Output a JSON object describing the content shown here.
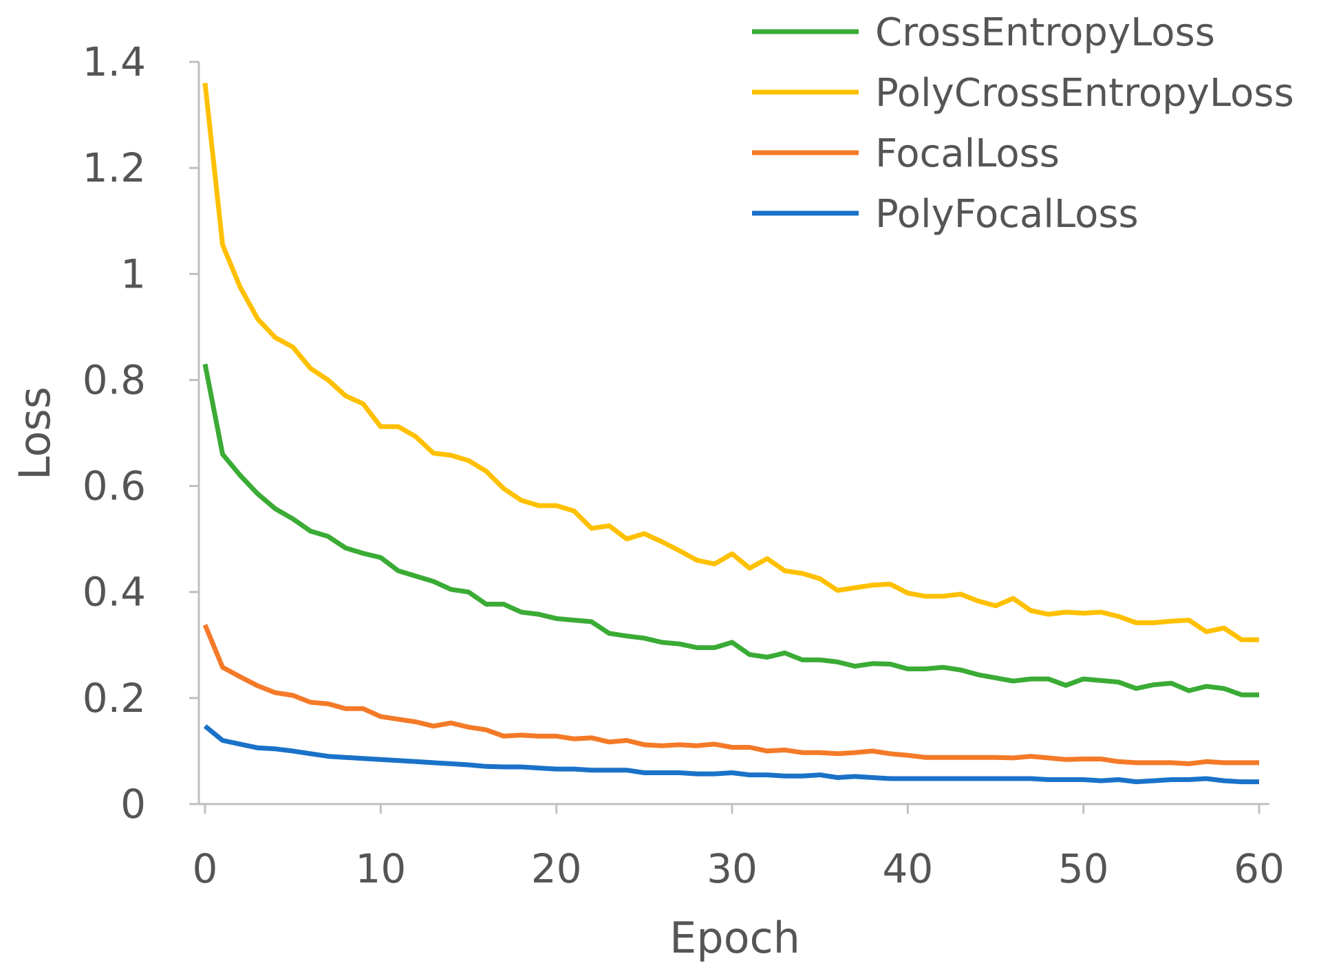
{
  "chart_data": {
    "type": "line",
    "title": "",
    "xlabel": "Epoch",
    "ylabel": "Loss",
    "xlim": [
      0,
      60
    ],
    "ylim": [
      0,
      1.4
    ],
    "xticks": [
      0,
      10,
      20,
      30,
      40,
      50,
      60
    ],
    "yticks": [
      {
        "value": 0,
        "label": "0"
      },
      {
        "value": 0.2,
        "label": "0.2"
      },
      {
        "value": 0.4,
        "label": "0.4"
      },
      {
        "value": 0.6,
        "label": "0.6"
      },
      {
        "value": 0.8,
        "label": "0.8"
      },
      {
        "value": 1,
        "label": "1"
      },
      {
        "value": 1.2,
        "label": "1.2"
      },
      {
        "value": 1.4,
        "label": "1.4"
      }
    ],
    "grid": false,
    "legend_position": "top-right",
    "x": [
      0,
      1,
      2,
      3,
      4,
      5,
      6,
      7,
      8,
      9,
      10,
      11,
      12,
      13,
      14,
      15,
      16,
      17,
      18,
      19,
      20,
      21,
      22,
      23,
      24,
      25,
      26,
      27,
      28,
      29,
      30,
      31,
      32,
      33,
      34,
      35,
      36,
      37,
      38,
      39,
      40,
      41,
      42,
      43,
      44,
      45,
      46,
      47,
      48,
      49,
      50,
      51,
      52,
      53,
      54,
      55,
      56,
      57,
      58,
      59,
      60
    ],
    "series": [
      {
        "name": "CrossEntropyLoss",
        "color": "#3aab35",
        "values": [
          0.83,
          0.66,
          0.62,
          0.585,
          0.557,
          0.538,
          0.515,
          0.505,
          0.483,
          0.473,
          0.465,
          0.44,
          0.43,
          0.42,
          0.405,
          0.4,
          0.377,
          0.377,
          0.362,
          0.358,
          0.35,
          0.347,
          0.344,
          0.322,
          0.317,
          0.313,
          0.305,
          0.302,
          0.295,
          0.295,
          0.305,
          0.282,
          0.277,
          0.285,
          0.272,
          0.272,
          0.268,
          0.26,
          0.265,
          0.264,
          0.255,
          0.255,
          0.258,
          0.253,
          0.244,
          0.238,
          0.232,
          0.236,
          0.236,
          0.224,
          0.236,
          0.233,
          0.23,
          0.218,
          0.225,
          0.228,
          0.214,
          0.222,
          0.218,
          0.206,
          0.206
        ]
      },
      {
        "name": "PolyCrossEntropyLoss",
        "color": "#ffc000",
        "values": [
          1.36,
          1.055,
          0.975,
          0.915,
          0.88,
          0.862,
          0.822,
          0.8,
          0.77,
          0.755,
          0.712,
          0.712,
          0.693,
          0.662,
          0.658,
          0.648,
          0.628,
          0.595,
          0.573,
          0.563,
          0.563,
          0.553,
          0.52,
          0.525,
          0.5,
          0.51,
          0.495,
          0.478,
          0.46,
          0.453,
          0.472,
          0.445,
          0.463,
          0.44,
          0.435,
          0.425,
          0.403,
          0.408,
          0.413,
          0.415,
          0.398,
          0.392,
          0.392,
          0.396,
          0.383,
          0.374,
          0.388,
          0.365,
          0.358,
          0.362,
          0.36,
          0.362,
          0.354,
          0.342,
          0.342,
          0.345,
          0.347,
          0.325,
          0.332,
          0.31,
          0.31
        ]
      },
      {
        "name": "FocalLoss",
        "color": "#f47a28",
        "values": [
          0.338,
          0.258,
          0.24,
          0.223,
          0.21,
          0.205,
          0.192,
          0.189,
          0.18,
          0.18,
          0.165,
          0.16,
          0.155,
          0.147,
          0.153,
          0.145,
          0.14,
          0.128,
          0.13,
          0.128,
          0.128,
          0.123,
          0.125,
          0.117,
          0.12,
          0.112,
          0.11,
          0.112,
          0.11,
          0.113,
          0.107,
          0.107,
          0.1,
          0.102,
          0.097,
          0.097,
          0.095,
          0.097,
          0.1,
          0.095,
          0.092,
          0.088,
          0.088,
          0.088,
          0.088,
          0.088,
          0.087,
          0.09,
          0.087,
          0.084,
          0.085,
          0.085,
          0.08,
          0.078,
          0.078,
          0.078,
          0.076,
          0.08,
          0.078,
          0.078,
          0.078
        ]
      },
      {
        "name": "PolyFocalLoss",
        "color": "#1a72c8",
        "values": [
          0.147,
          0.12,
          0.113,
          0.106,
          0.104,
          0.1,
          0.095,
          0.09,
          0.088,
          0.086,
          0.084,
          0.082,
          0.08,
          0.078,
          0.076,
          0.074,
          0.071,
          0.07,
          0.07,
          0.068,
          0.066,
          0.066,
          0.064,
          0.064,
          0.064,
          0.059,
          0.059,
          0.059,
          0.057,
          0.057,
          0.059,
          0.055,
          0.055,
          0.053,
          0.053,
          0.055,
          0.05,
          0.052,
          0.05,
          0.048,
          0.048,
          0.048,
          0.048,
          0.048,
          0.048,
          0.048,
          0.048,
          0.048,
          0.046,
          0.046,
          0.046,
          0.044,
          0.046,
          0.042,
          0.044,
          0.046,
          0.046,
          0.048,
          0.044,
          0.042,
          0.042
        ]
      }
    ]
  }
}
